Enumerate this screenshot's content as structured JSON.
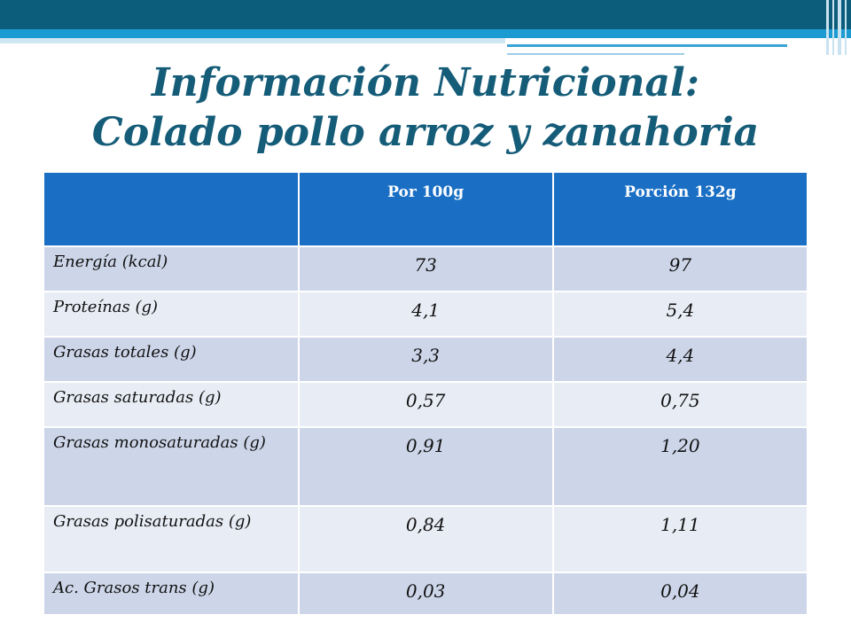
{
  "title": {
    "line1": "Información Nutricional:",
    "line2": "Colado pollo arroz y zanahoria"
  },
  "table": {
    "headers": [
      "",
      "Por 100g",
      "Porción 132g"
    ],
    "rows": [
      {
        "label": "Energía (kcal)",
        "per100": "73",
        "portion": "97"
      },
      {
        "label": "Proteínas (g)",
        "per100": "4,1",
        "portion": "5,4"
      },
      {
        "label": "Grasas totales (g)",
        "per100": "3,3",
        "portion": "4,4"
      },
      {
        "label": "Grasas saturadas (g)",
        "per100": "0,57",
        "portion": "0,75"
      },
      {
        "label": "Grasas monosaturadas (g)",
        "per100": "0,91",
        "portion": "1,20"
      },
      {
        "label": "Grasas polisaturadas (g)",
        "per100": "0,84",
        "portion": "1,11"
      },
      {
        "label": "Ac. Grasos trans (g)",
        "per100": "0,03",
        "portion": "0,04"
      }
    ]
  },
  "colors": {
    "title": "#155c78",
    "header_bg": "#1a6fc4",
    "row_odd": "#cdd6e9",
    "row_even": "#e8ecf5",
    "top_bar": "#0b5d7b"
  }
}
